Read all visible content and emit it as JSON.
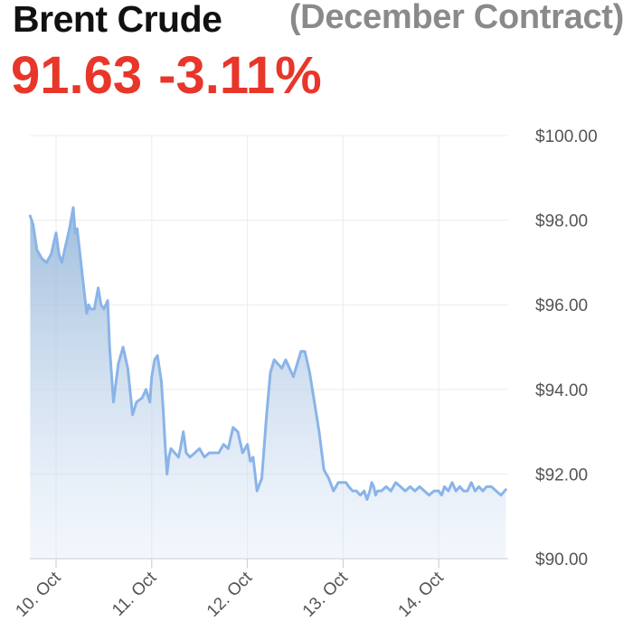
{
  "header": {
    "title": "Brent Crude",
    "subtitle": "(December Contract)",
    "price": "91.63",
    "change": "-3.11%"
  },
  "colors": {
    "line": "#8ab4e8",
    "change_negative": "#e8362a"
  },
  "chart_data": {
    "type": "area",
    "title": "Brent Crude",
    "subtitle": "(December Contract)",
    "y_axis_side": "right",
    "ylim": [
      90,
      100
    ],
    "y_ticks": [
      100,
      98,
      96,
      94,
      92,
      90
    ],
    "y_tick_labels": [
      "$100.00",
      "$98.00",
      "$96.00",
      "$94.00",
      "$92.00",
      "$90.00"
    ],
    "x_ticks": [
      0,
      1,
      2,
      3,
      4
    ],
    "x_tick_labels": [
      "10. Oct",
      "11. Oct",
      "12. Oct",
      "13. Oct",
      "14. Oct"
    ],
    "xlim": [
      -0.27,
      4.7
    ],
    "grid": true,
    "series": [
      {
        "x": [
          -0.27,
          -0.24,
          -0.2,
          -0.15,
          -0.1,
          -0.05,
          0.0,
          0.03,
          0.06,
          0.1,
          0.14,
          0.18,
          0.2,
          0.22,
          0.26,
          0.3,
          0.32,
          0.34,
          0.36,
          0.38,
          0.4,
          0.44,
          0.47,
          0.5,
          0.52,
          0.54,
          0.56,
          0.6,
          0.65,
          0.7,
          0.75,
          0.8,
          0.84,
          0.9,
          0.94,
          0.98,
          1.0,
          1.03,
          1.06,
          1.1,
          1.12,
          1.14,
          1.16,
          1.18,
          1.2,
          1.24,
          1.28,
          1.3,
          1.33,
          1.36,
          1.4,
          1.45,
          1.5,
          1.55,
          1.6,
          1.64,
          1.7,
          1.75,
          1.8,
          1.85,
          1.9,
          1.95,
          2.0,
          2.03,
          2.06,
          2.1,
          2.15,
          2.2,
          2.24,
          2.28,
          2.32,
          2.36,
          2.4,
          2.44,
          2.48,
          2.52,
          2.56,
          2.6,
          2.65,
          2.7,
          2.75,
          2.8,
          2.85,
          2.9,
          2.95,
          3.0,
          3.03,
          3.06,
          3.1,
          3.14,
          3.18,
          3.22,
          3.25,
          3.28,
          3.3,
          3.32,
          3.34,
          3.36,
          3.4,
          3.45,
          3.5,
          3.55,
          3.6,
          3.65,
          3.7,
          3.75,
          3.8,
          3.85,
          3.9,
          3.95,
          4.0,
          4.03,
          4.06,
          4.1,
          4.14,
          4.18,
          4.22,
          4.26,
          4.3,
          4.34,
          4.38,
          4.42,
          4.46,
          4.5,
          4.55,
          4.6,
          4.65,
          4.7
        ],
        "y": [
          98.1,
          97.9,
          97.3,
          97.1,
          97.0,
          97.2,
          97.7,
          97.2,
          97.0,
          97.4,
          97.8,
          98.3,
          97.7,
          97.8,
          97.0,
          96.2,
          95.8,
          96.0,
          95.9,
          95.9,
          95.9,
          96.4,
          96.0,
          95.9,
          96.0,
          96.1,
          95.0,
          93.7,
          94.6,
          95.0,
          94.5,
          93.4,
          93.7,
          93.8,
          94.0,
          93.7,
          94.3,
          94.7,
          94.8,
          94.2,
          93.5,
          92.7,
          92.0,
          92.4,
          92.6,
          92.5,
          92.4,
          92.6,
          93.0,
          92.5,
          92.4,
          92.5,
          92.6,
          92.4,
          92.5,
          92.5,
          92.5,
          92.7,
          92.6,
          93.1,
          93.0,
          92.5,
          92.7,
          92.3,
          92.4,
          91.6,
          91.9,
          93.4,
          94.4,
          94.7,
          94.6,
          94.5,
          94.7,
          94.5,
          94.3,
          94.6,
          94.9,
          94.9,
          94.4,
          93.7,
          93.0,
          92.1,
          91.9,
          91.6,
          91.8,
          91.8,
          91.8,
          91.7,
          91.6,
          91.6,
          91.5,
          91.6,
          91.4,
          91.6,
          91.8,
          91.7,
          91.5,
          91.6,
          91.6,
          91.7,
          91.6,
          91.8,
          91.7,
          91.6,
          91.7,
          91.6,
          91.7,
          91.6,
          91.5,
          91.6,
          91.6,
          91.5,
          91.7,
          91.6,
          91.8,
          91.6,
          91.7,
          91.6,
          91.6,
          91.8,
          91.6,
          91.7,
          91.6,
          91.7,
          91.7,
          91.6,
          91.5,
          91.63
        ]
      }
    ]
  }
}
